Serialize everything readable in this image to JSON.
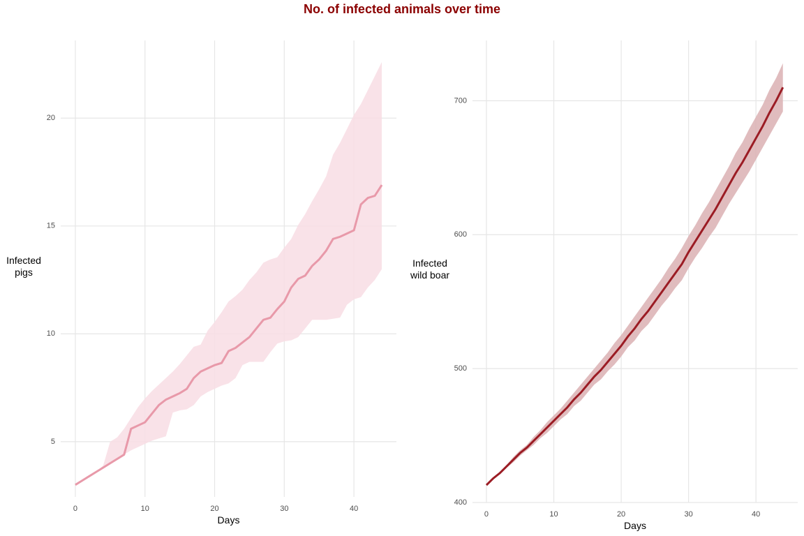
{
  "title": "No. of infected animals over time",
  "chart_data": [
    {
      "type": "line",
      "x_label": "Days",
      "y_label": "Infected\npigs",
      "xlim": [
        -2.1,
        46.1
      ],
      "ylim": [
        2.44,
        23.6
      ],
      "xticks": [
        0,
        10,
        20,
        30,
        40
      ],
      "yticks": [
        5,
        10,
        15,
        20
      ],
      "grid": true,
      "color": "#e899a9",
      "band_color": "#f8dde4",
      "x": [
        0,
        1,
        2,
        3,
        4,
        5,
        6,
        7,
        8,
        9,
        10,
        11,
        12,
        13,
        14,
        15,
        16,
        17,
        18,
        19,
        20,
        21,
        22,
        23,
        24,
        25,
        26,
        27,
        28,
        29,
        30,
        31,
        32,
        33,
        34,
        35,
        36,
        37,
        38,
        39,
        40,
        41,
        42,
        43,
        44
      ],
      "values": [
        3.0,
        3.2,
        3.4,
        3.6,
        3.8,
        4.0,
        4.2,
        4.4,
        5.6,
        5.75,
        5.9,
        6.3,
        6.7,
        6.95,
        7.1,
        7.25,
        7.45,
        7.95,
        8.25,
        8.4,
        8.55,
        8.65,
        9.2,
        9.35,
        9.6,
        9.85,
        10.25,
        10.65,
        10.75,
        11.15,
        11.5,
        12.15,
        12.55,
        12.7,
        13.15,
        13.45,
        13.85,
        14.4,
        14.5,
        14.65,
        14.8,
        16.0,
        16.3,
        16.4,
        16.9
      ],
      "lower": [
        3.0,
        3.2,
        3.4,
        3.6,
        3.8,
        4.0,
        4.2,
        4.4,
        4.6,
        4.75,
        4.9,
        5.05,
        5.15,
        5.25,
        6.35,
        6.45,
        6.5,
        6.7,
        7.1,
        7.3,
        7.45,
        7.6,
        7.7,
        7.95,
        8.55,
        8.7,
        8.7,
        8.7,
        9.15,
        9.55,
        9.65,
        9.7,
        9.85,
        10.25,
        10.65,
        10.65,
        10.65,
        10.7,
        10.75,
        11.35,
        11.6,
        11.7,
        12.15,
        12.5,
        13.0
      ],
      "upper": [
        3.0,
        3.2,
        3.4,
        3.6,
        3.9,
        5.0,
        5.2,
        5.6,
        6.1,
        6.6,
        7.0,
        7.35,
        7.65,
        7.95,
        8.25,
        8.6,
        9.0,
        9.4,
        9.5,
        10.15,
        10.55,
        11.0,
        11.5,
        11.75,
        12.05,
        12.5,
        12.85,
        13.3,
        13.45,
        13.55,
        14.0,
        14.4,
        15.05,
        15.55,
        16.15,
        16.7,
        17.3,
        18.3,
        18.85,
        19.5,
        20.15,
        20.65,
        21.3,
        21.95,
        22.6
      ]
    },
    {
      "type": "line",
      "x_label": "Days",
      "y_label": "Infected\nwild boar",
      "xlim": [
        -2.07,
        46.2
      ],
      "ylim": [
        400,
        745
      ],
      "xticks": [
        0,
        10,
        20,
        30,
        40
      ],
      "yticks": [
        400,
        500,
        600,
        700
      ],
      "grid": true,
      "color": "#9b1c24",
      "band_color": "#dbb0b3",
      "x": [
        0,
        1,
        2,
        3,
        4,
        5,
        6,
        7,
        8,
        9,
        10,
        11,
        12,
        13,
        14,
        15,
        16,
        17,
        18,
        19,
        20,
        21,
        22,
        23,
        24,
        25,
        26,
        27,
        28,
        29,
        30,
        31,
        32,
        33,
        34,
        35,
        36,
        37,
        38,
        39,
        40,
        41,
        42,
        43,
        44
      ],
      "values": [
        413,
        418,
        422,
        427,
        432,
        437,
        441,
        446,
        451,
        456,
        461,
        466,
        471,
        477,
        482,
        488,
        494,
        499,
        505,
        511,
        517,
        524,
        530,
        537,
        543,
        550,
        557,
        564,
        571,
        578,
        587,
        595,
        603,
        611,
        619,
        628,
        637,
        646,
        654,
        663,
        672,
        681,
        691,
        700,
        710
      ],
      "lower": [
        413,
        418,
        421,
        426,
        430,
        435,
        439,
        443,
        448,
        452,
        457,
        462,
        466,
        472,
        476,
        482,
        488,
        492,
        498,
        503,
        509,
        516,
        521,
        528,
        533,
        540,
        547,
        553,
        560,
        566,
        575,
        583,
        590,
        598,
        605,
        614,
        623,
        631,
        639,
        647,
        656,
        665,
        674,
        683,
        692
      ],
      "upper": [
        413,
        418,
        423,
        428,
        434,
        439,
        443,
        449,
        454,
        460,
        465,
        470,
        476,
        482,
        488,
        494,
        500,
        506,
        512,
        519,
        525,
        532,
        539,
        546,
        553,
        560,
        567,
        575,
        582,
        590,
        599,
        607,
        616,
        624,
        633,
        642,
        651,
        661,
        669,
        679,
        688,
        697,
        708,
        717,
        728
      ]
    }
  ]
}
